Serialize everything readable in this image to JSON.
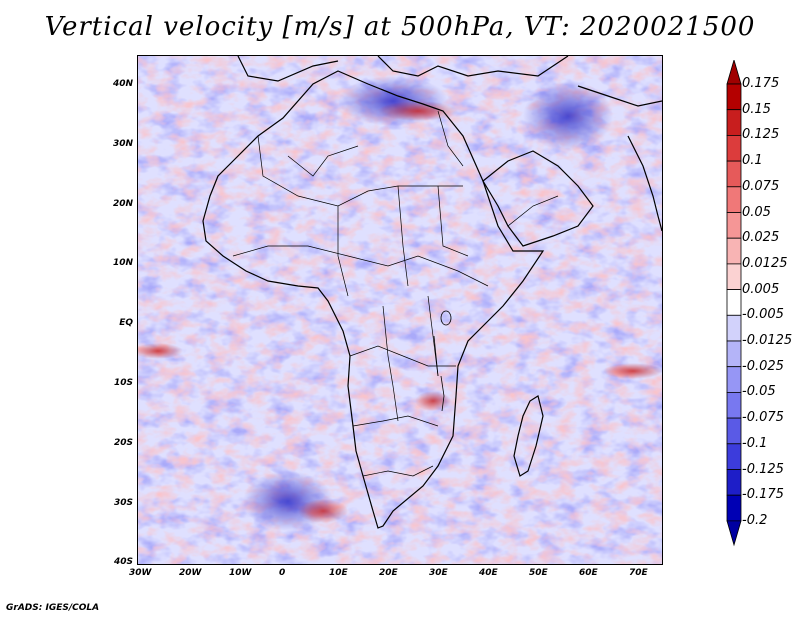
{
  "title": "Vertical velocity [m/s] at 500hPa, VT: 2020021500",
  "credit": "GrADS: IGES/COLA",
  "latitude_labels": [
    "40N",
    "30N",
    "20N",
    "10N",
    "EQ",
    "10S",
    "20S",
    "30S",
    "40S"
  ],
  "longitude_labels": [
    "30W",
    "20W",
    "10W",
    "0",
    "10E",
    "20E",
    "30E",
    "40E",
    "50E",
    "60E",
    "70E"
  ],
  "colorbar": {
    "labels": [
      "0.175",
      "0.15",
      "0.125",
      "0.1",
      "0.075",
      "0.05",
      "0.025",
      "0.0125",
      "0.005",
      "-0.005",
      "-0.0125",
      "-0.025",
      "-0.05",
      "-0.075",
      "-0.1",
      "-0.125",
      "-0.175",
      "-0.2"
    ],
    "colors": [
      "#b40000",
      "#c81e1e",
      "#dc3c3c",
      "#e65a5a",
      "#f07878",
      "#f59696",
      "#f8b4b4",
      "#fbd2d2",
      "#ffffff",
      "#d2d2fb",
      "#b4b4f8",
      "#9696f5",
      "#7878f0",
      "#5a5ae6",
      "#3c3cdc",
      "#1e1ec8",
      "#0000b4"
    ],
    "top_arrow_color": "#a00000",
    "bottom_arrow_color": "#0000a0"
  }
}
